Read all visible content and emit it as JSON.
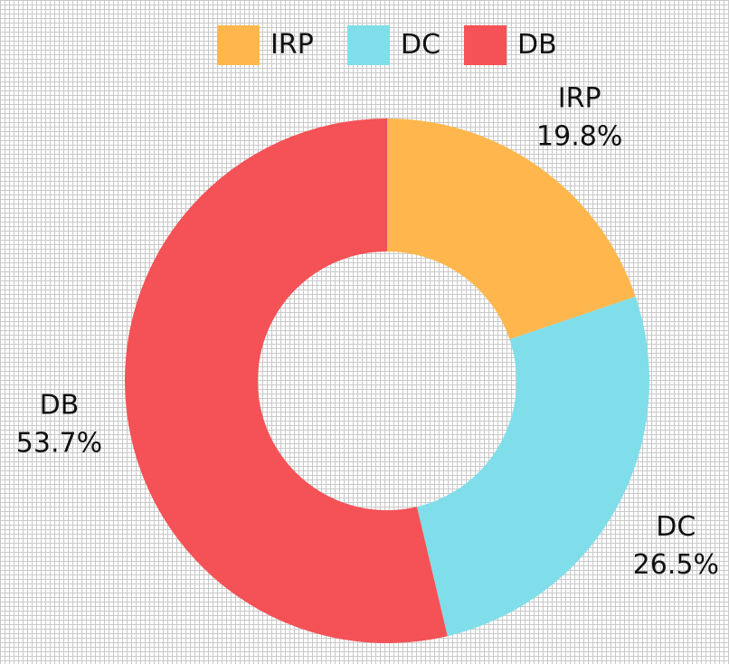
{
  "chart_data": {
    "type": "pie",
    "style": "donut",
    "legend_position": "top",
    "grid": true,
    "categories": [
      "IRP",
      "DC",
      "DB"
    ],
    "values": [
      19.8,
      26.5,
      53.7
    ],
    "value_labels": [
      "19.8%",
      "26.5%",
      "53.7%"
    ],
    "colors": [
      "#ffb74d",
      "#80deea",
      "#f45256"
    ]
  }
}
